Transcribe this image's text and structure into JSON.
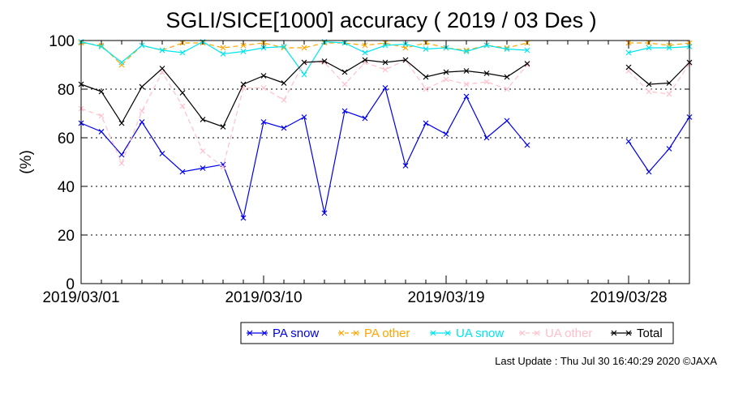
{
  "chart_data": {
    "type": "line",
    "title": "SGLI/SICE[1000] accuracy ( 2019 / 03 Des )",
    "xlabel": "",
    "ylabel": "(%)",
    "ylim": [
      0,
      100
    ],
    "yticks": [
      0,
      20,
      40,
      60,
      80,
      100
    ],
    "xlim": [
      "2019/03/01",
      "2019/03/31"
    ],
    "xticks": [
      "2019/03/01",
      "2019/03/10",
      "2019/03/19",
      "2019/03/28"
    ],
    "grid": "horizontal dotted at 20, 40, 60, 80",
    "legend_position": "bottom-right",
    "series": [
      {
        "name": "PA snow",
        "color": "#0000ee",
        "dashed": false,
        "values": [
          66,
          62.5,
          53,
          66.5,
          53.5,
          46,
          47.5,
          49,
          27,
          66.5,
          64,
          68.5,
          29,
          71,
          68,
          80.5,
          48.5,
          66,
          61.5,
          77,
          60,
          67,
          57,
          null,
          null,
          null,
          null,
          58.5,
          46,
          55.5,
          68.5
        ]
      },
      {
        "name": "PA other",
        "color": "#ffa500",
        "dashed": true,
        "values": [
          99,
          98,
          90,
          98,
          96,
          99,
          99,
          97,
          98,
          99,
          97,
          97,
          99,
          99,
          98,
          99,
          97,
          99,
          97,
          96,
          98,
          97,
          99,
          null,
          null,
          null,
          null,
          99,
          99,
          98,
          99
        ]
      },
      {
        "name": "UA snow",
        "color": "#00e5ee",
        "dashed": false,
        "values": [
          99.5,
          97.5,
          91,
          98,
          96,
          95,
          99.5,
          94.5,
          95.5,
          97,
          97.5,
          86,
          99.5,
          99,
          95,
          98,
          98.5,
          96.5,
          97,
          95.5,
          98,
          96.5,
          96,
          null,
          null,
          null,
          null,
          95,
          97,
          97,
          97.5
        ]
      },
      {
        "name": "UA other",
        "color": "#ffc0cb",
        "dashed": true,
        "values": [
          72,
          69,
          49.5,
          71,
          87,
          73,
          54.5,
          48,
          80.5,
          80.5,
          75.5,
          91,
          91,
          82,
          91,
          88,
          92,
          80,
          84,
          82,
          83,
          80,
          90,
          null,
          null,
          null,
          null,
          87.5,
          79,
          78,
          90.5
        ]
      },
      {
        "name": "Total",
        "color": "#000000",
        "dashed": false,
        "values": [
          82,
          79,
          66,
          81,
          88.5,
          78.5,
          67.5,
          64.5,
          82,
          85.5,
          82.5,
          91,
          91.5,
          87,
          92,
          91,
          92,
          85,
          87,
          87.5,
          86.5,
          85,
          90.5,
          null,
          null,
          null,
          null,
          89,
          82,
          82.5,
          91
        ]
      }
    ]
  },
  "footer": {
    "last_update": "Last Update : Thu Jul 30 16:40:29 2020  ©JAXA"
  }
}
